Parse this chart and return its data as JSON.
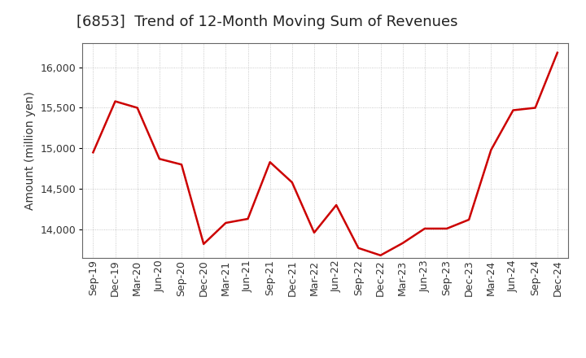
{
  "title": "[6853]  Trend of 12-Month Moving Sum of Revenues",
  "ylabel": "Amount (million yen)",
  "line_color": "#cc0000",
  "background_color": "#ffffff",
  "grid_color": "#bbbbbb",
  "labels": [
    "Sep-19",
    "Dec-19",
    "Mar-20",
    "Jun-20",
    "Sep-20",
    "Dec-20",
    "Mar-21",
    "Jun-21",
    "Sep-21",
    "Dec-21",
    "Mar-22",
    "Jun-22",
    "Sep-22",
    "Dec-22",
    "Mar-23",
    "Jun-23",
    "Sep-23",
    "Dec-23",
    "Mar-24",
    "Jun-24",
    "Sep-24",
    "Dec-24"
  ],
  "values": [
    14950,
    15580,
    15500,
    14870,
    14800,
    13820,
    14080,
    14130,
    14830,
    14580,
    13960,
    14300,
    13770,
    13680,
    13830,
    14010,
    14010,
    14120,
    14980,
    15470,
    15500,
    16180
  ],
  "ylim": [
    13650,
    16300
  ],
  "yticks": [
    14000,
    14500,
    15000,
    15500,
    16000
  ],
  "title_fontsize": 13,
  "axis_fontsize": 10,
  "tick_fontsize": 9,
  "linewidth": 1.8
}
